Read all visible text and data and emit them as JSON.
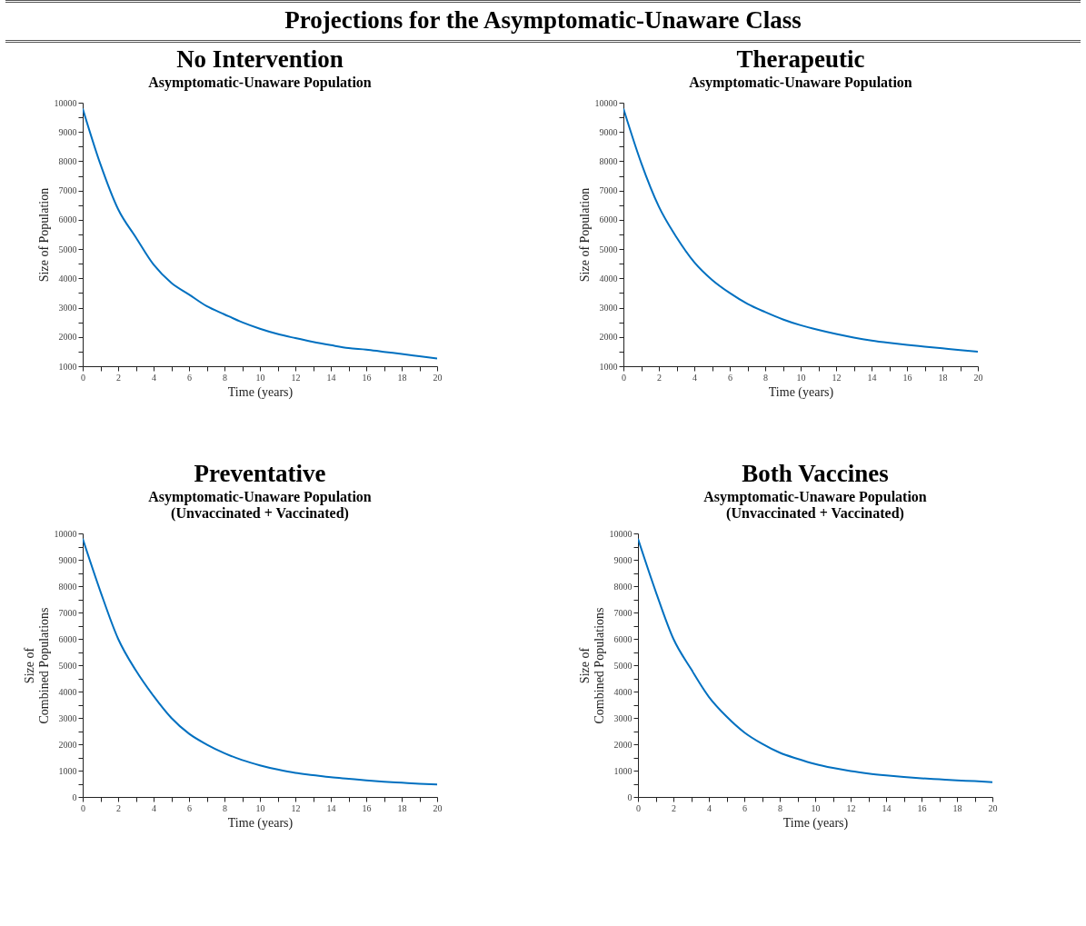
{
  "chart_data": [
    {
      "type": "line",
      "title": "No Intervention",
      "subtitle": "Asymptomatic-Unaware Population",
      "xlabel": "Time (years)",
      "ylabel": "Size of Population",
      "annotations": [
        "Projections for the Asymptomatic-Unaware Class"
      ],
      "x": [
        0,
        1,
        2,
        3,
        4,
        5,
        6,
        7,
        8,
        9,
        10,
        11,
        12,
        13,
        14,
        15,
        16,
        17,
        18,
        19,
        20
      ],
      "series": [
        {
          "color": "#0070c0",
          "values": [
            9800,
            7900,
            6360,
            5400,
            4470,
            3850,
            3450,
            3050,
            2770,
            2500,
            2280,
            2100,
            1960,
            1830,
            1720,
            1620,
            1570,
            1490,
            1420,
            1340,
            1260
          ]
        }
      ],
      "xlim": [
        0,
        20
      ],
      "ylim": [
        1000,
        10000
      ],
      "xticks": [
        0,
        {
          "value": 1,
          "label": null
        },
        2,
        {
          "value": 3,
          "label": null
        },
        4,
        {
          "value": 5,
          "label": null
        },
        6,
        {
          "value": 7,
          "label": null
        },
        8,
        {
          "value": 9,
          "label": null
        },
        10,
        {
          "value": 11,
          "label": null
        },
        12,
        {
          "value": 13,
          "label": null
        },
        14,
        {
          "value": 15,
          "label": null
        },
        16,
        {
          "value": 17,
          "label": null
        },
        18,
        {
          "value": 19,
          "label": null
        },
        20
      ],
      "yticks": [
        1000,
        {
          "value": 1500,
          "label": null
        },
        2000,
        {
          "value": 2500,
          "label": null
        },
        3000,
        {
          "value": 3500,
          "label": null
        },
        4000,
        {
          "value": 4500,
          "label": null
        },
        5000,
        {
          "value": 5500,
          "label": null
        },
        6000,
        {
          "value": 6500,
          "label": null
        },
        7000,
        {
          "value": 7500,
          "label": null
        },
        8000,
        {
          "value": 8500,
          "label": null
        },
        9000,
        {
          "value": 9500,
          "label": null
        },
        10000
      ]
    },
    {
      "type": "line",
      "title": "Therapeutic",
      "subtitle": "Asymptomatic-Unaware Population",
      "xlabel": "Time (years)",
      "ylabel": "Size of Population",
      "x": [
        0,
        1,
        2,
        3,
        4,
        5,
        6,
        7,
        8,
        9,
        10,
        11,
        12,
        13,
        14,
        15,
        16,
        17,
        18,
        19,
        20
      ],
      "series": [
        {
          "color": "#0070c0",
          "values": [
            9800,
            7950,
            6450,
            5400,
            4550,
            3950,
            3500,
            3130,
            2850,
            2600,
            2400,
            2240,
            2100,
            1980,
            1880,
            1800,
            1730,
            1670,
            1610,
            1550,
            1500
          ]
        }
      ],
      "xlim": [
        0,
        20
      ],
      "ylim": [
        1000,
        10000
      ],
      "xticks": [
        0,
        {
          "value": 1,
          "label": null
        },
        2,
        {
          "value": 3,
          "label": null
        },
        4,
        {
          "value": 5,
          "label": null
        },
        6,
        {
          "value": 7,
          "label": null
        },
        8,
        {
          "value": 9,
          "label": null
        },
        10,
        {
          "value": 11,
          "label": null
        },
        12,
        {
          "value": 13,
          "label": null
        },
        14,
        {
          "value": 15,
          "label": null
        },
        16,
        {
          "value": 17,
          "label": null
        },
        18,
        {
          "value": 19,
          "label": null
        },
        20
      ],
      "yticks": [
        1000,
        {
          "value": 1500,
          "label": null
        },
        2000,
        {
          "value": 2500,
          "label": null
        },
        3000,
        {
          "value": 3500,
          "label": null
        },
        4000,
        {
          "value": 4500,
          "label": null
        },
        5000,
        {
          "value": 5500,
          "label": null
        },
        6000,
        {
          "value": 6500,
          "label": null
        },
        7000,
        {
          "value": 7500,
          "label": null
        },
        8000,
        {
          "value": 8500,
          "label": null
        },
        9000,
        {
          "value": 9500,
          "label": null
        },
        10000
      ]
    },
    {
      "type": "line",
      "title": "Preventative",
      "subtitle": "Asymptomatic-Unaware Population\n(Unvaccinated + Vaccinated)",
      "xlabel": "Time (years)",
      "ylabel": "Size of\nCombined Populations",
      "x": [
        0,
        1,
        2,
        3,
        4,
        5,
        6,
        7,
        8,
        9,
        10,
        11,
        12,
        13,
        14,
        15,
        16,
        17,
        18,
        19,
        20
      ],
      "series": [
        {
          "color": "#0070c0",
          "values": [
            9800,
            7800,
            6000,
            4800,
            3830,
            3000,
            2400,
            1990,
            1660,
            1400,
            1200,
            1040,
            910,
            830,
            750,
            690,
            630,
            580,
            540,
            500,
            470
          ]
        }
      ],
      "xlim": [
        0,
        20
      ],
      "ylim": [
        0,
        10000
      ],
      "xticks": [
        0,
        {
          "value": 1,
          "label": null
        },
        2,
        {
          "value": 3,
          "label": null
        },
        4,
        {
          "value": 5,
          "label": null
        },
        6,
        {
          "value": 7,
          "label": null
        },
        8,
        {
          "value": 9,
          "label": null
        },
        10,
        {
          "value": 11,
          "label": null
        },
        12,
        {
          "value": 13,
          "label": null
        },
        14,
        {
          "value": 15,
          "label": null
        },
        16,
        {
          "value": 17,
          "label": null
        },
        18,
        {
          "value": 19,
          "label": null
        },
        20
      ],
      "yticks": [
        0,
        {
          "value": 500,
          "label": null
        },
        1000,
        {
          "value": 1500,
          "label": null
        },
        2000,
        {
          "value": 2500,
          "label": null
        },
        3000,
        {
          "value": 3500,
          "label": null
        },
        4000,
        {
          "value": 4500,
          "label": null
        },
        5000,
        {
          "value": 5500,
          "label": null
        },
        6000,
        {
          "value": 6500,
          "label": null
        },
        7000,
        {
          "value": 7500,
          "label": null
        },
        8000,
        {
          "value": 8500,
          "label": null
        },
        9000,
        {
          "value": 9500,
          "label": null
        },
        10000
      ]
    },
    {
      "type": "line",
      "title": "Both Vaccines",
      "subtitle": "Asymptomatic-Unaware Population\n(Unvaccinated + Vaccinated)",
      "xlabel": "Time (years)",
      "ylabel": "Size of\nCombined Populations",
      "x": [
        0,
        1,
        2,
        3,
        4,
        5,
        6,
        7,
        8,
        9,
        10,
        11,
        12,
        13,
        14,
        15,
        16,
        17,
        18,
        19,
        20
      ],
      "series": [
        {
          "color": "#0070c0",
          "values": [
            9800,
            7800,
            6000,
            4850,
            3800,
            3050,
            2450,
            2020,
            1680,
            1450,
            1250,
            1100,
            980,
            890,
            820,
            760,
            710,
            670,
            630,
            600,
            560
          ]
        }
      ],
      "xlim": [
        0,
        20
      ],
      "ylim": [
        0,
        10000
      ],
      "xticks": [
        0,
        {
          "value": 1,
          "label": null
        },
        2,
        {
          "value": 3,
          "label": null
        },
        4,
        {
          "value": 5,
          "label": null
        },
        6,
        {
          "value": 7,
          "label": null
        },
        8,
        {
          "value": 9,
          "label": null
        },
        10,
        {
          "value": 11,
          "label": null
        },
        12,
        {
          "value": 13,
          "label": null
        },
        14,
        {
          "value": 15,
          "label": null
        },
        16,
        {
          "value": 17,
          "label": null
        },
        18,
        {
          "value": 19,
          "label": null
        },
        20
      ],
      "yticks": [
        0,
        {
          "value": 500,
          "label": null
        },
        1000,
        {
          "value": 1500,
          "label": null
        },
        2000,
        {
          "value": 2500,
          "label": null
        },
        3000,
        {
          "value": 3500,
          "label": null
        },
        4000,
        {
          "value": 4500,
          "label": null
        },
        5000,
        {
          "value": 5500,
          "label": null
        },
        6000,
        {
          "value": 6500,
          "label": null
        },
        7000,
        {
          "value": 7500,
          "label": null
        },
        8000,
        {
          "value": 8500,
          "label": null
        },
        9000,
        {
          "value": 9500,
          "label": null
        },
        10000
      ]
    }
  ]
}
